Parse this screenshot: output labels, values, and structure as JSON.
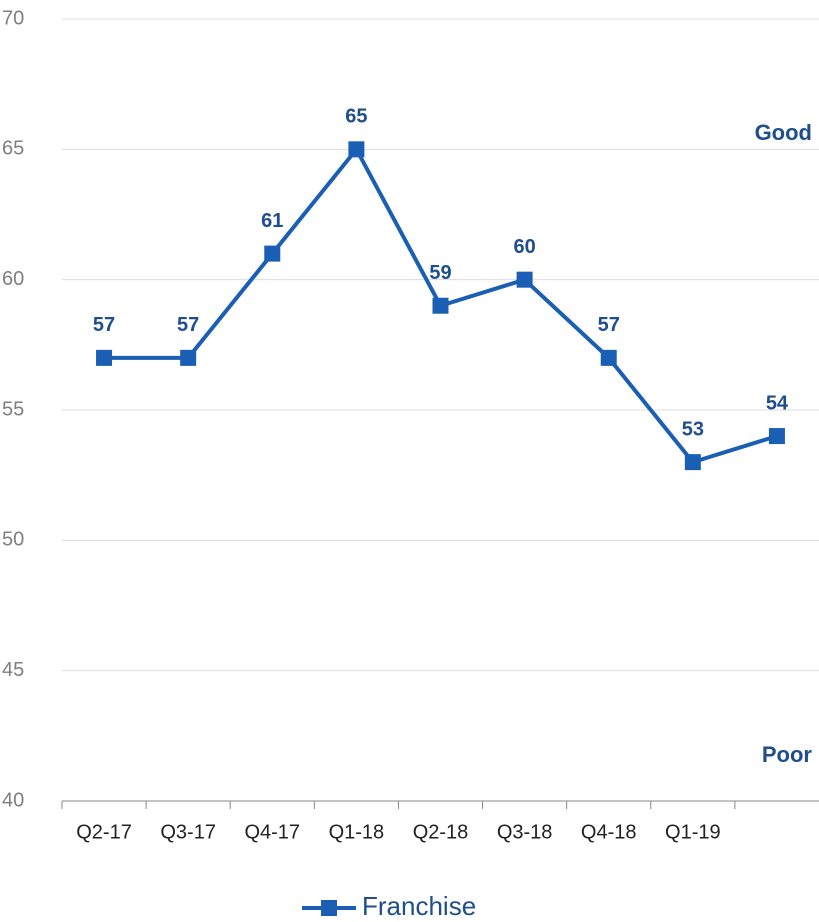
{
  "chart_data": {
    "type": "line",
    "categories": [
      "Q2-17",
      "Q3-17",
      "Q4-17",
      "Q1-18",
      "Q2-18",
      "Q3-18",
      "Q4-18",
      "Q1-19",
      null
    ],
    "series": [
      {
        "name": "Franchise",
        "color": "#1a5fb4",
        "values": [
          57,
          57,
          61,
          65,
          59,
          60,
          57,
          53,
          54
        ]
      }
    ],
    "ylim": [
      40,
      70
    ],
    "yticks": [
      40,
      45,
      50,
      55,
      60,
      65,
      70
    ],
    "grid": true,
    "annotations": [
      "Good",
      "Poor"
    ]
  }
}
